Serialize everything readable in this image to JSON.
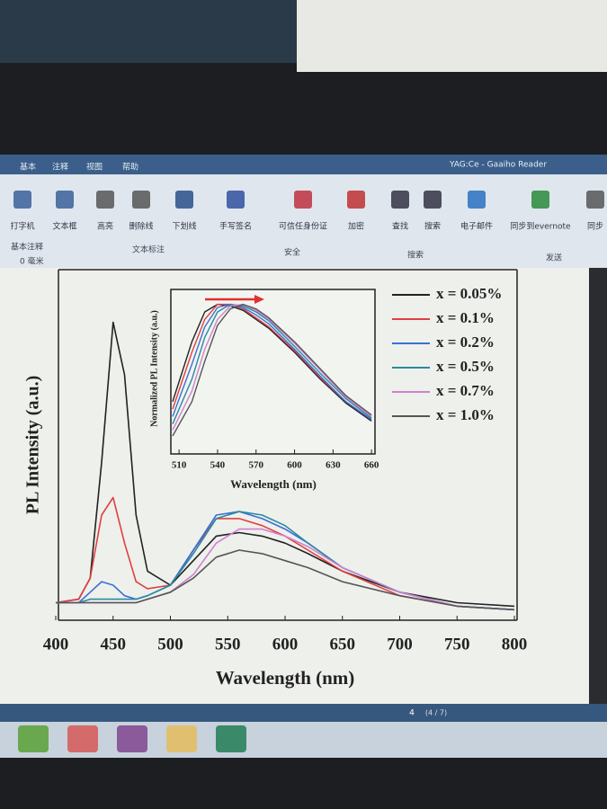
{
  "window": {
    "title": "YAG:Ce - Gaaiho Reader",
    "tabs": [
      "基本",
      "注释",
      "视图",
      "帮助"
    ]
  },
  "toolbar": {
    "buttons": [
      "打字机",
      "文本框",
      "高亮",
      "删除线",
      "下划线",
      "手写签名",
      "可信任身份证",
      "加密",
      "查找",
      "搜索",
      "电子邮件",
      "同步到evernote",
      "同步"
    ],
    "groups": [
      "基本注释",
      "文本标注",
      "安全",
      "搜索",
      "发送"
    ]
  },
  "status": {
    "zoom": "0 毫米",
    "page": "4",
    "page_of": "(4 / 7)"
  },
  "chart_data": [
    {
      "type": "line",
      "x_label": "Wavelength (nm)",
      "y_label": "PL Intensity (a.u.)",
      "x": [
        400,
        420,
        430,
        440,
        450,
        460,
        470,
        480,
        500,
        520,
        540,
        560,
        580,
        600,
        620,
        650,
        700,
        750,
        800
      ],
      "xlim": [
        400,
        800
      ],
      "xticks": [
        400,
        450,
        500,
        550,
        600,
        650,
        700,
        750,
        800
      ],
      "ylim": [
        0,
        1
      ],
      "legend": "upper right",
      "series": [
        {
          "name": "x = 0.05%",
          "color": "#222222",
          "values": [
            0.05,
            0.06,
            0.12,
            0.45,
            0.85,
            0.7,
            0.3,
            0.14,
            0.1,
            0.17,
            0.24,
            0.25,
            0.24,
            0.22,
            0.19,
            0.14,
            0.08,
            0.05,
            0.04
          ]
        },
        {
          "name": "x = 0.1%",
          "color": "#e04040",
          "values": [
            0.05,
            0.06,
            0.12,
            0.3,
            0.35,
            0.22,
            0.11,
            0.09,
            0.1,
            0.2,
            0.29,
            0.29,
            0.27,
            0.24,
            0.2,
            0.14,
            0.07,
            0.04,
            0.03
          ]
        },
        {
          "name": "x = 0.2%",
          "color": "#3a6fd8",
          "values": [
            0.05,
            0.05,
            0.08,
            0.11,
            0.1,
            0.07,
            0.06,
            0.07,
            0.1,
            0.2,
            0.3,
            0.31,
            0.29,
            0.26,
            0.22,
            0.15,
            0.08,
            0.04,
            0.03
          ]
        },
        {
          "name": "x = 0.5%",
          "color": "#2a8aa0",
          "values": [
            0.05,
            0.05,
            0.06,
            0.06,
            0.06,
            0.06,
            0.06,
            0.07,
            0.1,
            0.19,
            0.29,
            0.31,
            0.3,
            0.27,
            0.22,
            0.15,
            0.08,
            0.04,
            0.03
          ]
        },
        {
          "name": "x = 0.7%",
          "color": "#d080d0",
          "values": [
            0.05,
            0.05,
            0.05,
            0.05,
            0.05,
            0.05,
            0.05,
            0.06,
            0.08,
            0.13,
            0.22,
            0.26,
            0.26,
            0.24,
            0.21,
            0.15,
            0.08,
            0.04,
            0.03
          ]
        },
        {
          "name": "x = 1.0%",
          "color": "#555555",
          "values": [
            0.05,
            0.05,
            0.05,
            0.05,
            0.05,
            0.05,
            0.05,
            0.06,
            0.08,
            0.12,
            0.18,
            0.2,
            0.19,
            0.17,
            0.15,
            0.11,
            0.07,
            0.04,
            0.03
          ]
        }
      ]
    },
    {
      "type": "line",
      "x_label": "Wavelength (nm)",
      "y_label": "Normalized PL Intensity (a.u.)",
      "x": [
        505,
        520,
        530,
        540,
        550,
        560,
        570,
        580,
        600,
        620,
        640,
        660
      ],
      "xlim": [
        505,
        662
      ],
      "xticks": [
        510,
        540,
        570,
        600,
        630,
        660
      ],
      "ylim": [
        0,
        1.1
      ],
      "series": [
        {
          "name": "x = 0.05%",
          "color": "#222222",
          "values": [
            0.35,
            0.75,
            0.95,
            1.0,
            0.99,
            0.96,
            0.9,
            0.84,
            0.68,
            0.5,
            0.34,
            0.22
          ]
        },
        {
          "name": "x = 0.1%",
          "color": "#e04040",
          "values": [
            0.3,
            0.68,
            0.9,
            1.0,
            1.0,
            0.97,
            0.91,
            0.85,
            0.69,
            0.51,
            0.35,
            0.23
          ]
        },
        {
          "name": "x = 0.2%",
          "color": "#3a6fd8",
          "values": [
            0.25,
            0.6,
            0.85,
            0.98,
            1.0,
            0.98,
            0.93,
            0.87,
            0.7,
            0.52,
            0.35,
            0.23
          ]
        },
        {
          "name": "x = 0.5%",
          "color": "#2a8aa0",
          "values": [
            0.2,
            0.5,
            0.78,
            0.95,
            1.0,
            0.99,
            0.95,
            0.89,
            0.72,
            0.54,
            0.37,
            0.24
          ]
        },
        {
          "name": "x = 0.7%",
          "color": "#d080d0",
          "values": [
            0.16,
            0.42,
            0.7,
            0.9,
            0.99,
            1.0,
            0.96,
            0.9,
            0.74,
            0.56,
            0.38,
            0.25
          ]
        },
        {
          "name": "x = 1.0%",
          "color": "#555555",
          "values": [
            0.12,
            0.35,
            0.62,
            0.86,
            0.97,
            1.0,
            0.97,
            0.91,
            0.75,
            0.57,
            0.39,
            0.26
          ]
        }
      ]
    }
  ]
}
